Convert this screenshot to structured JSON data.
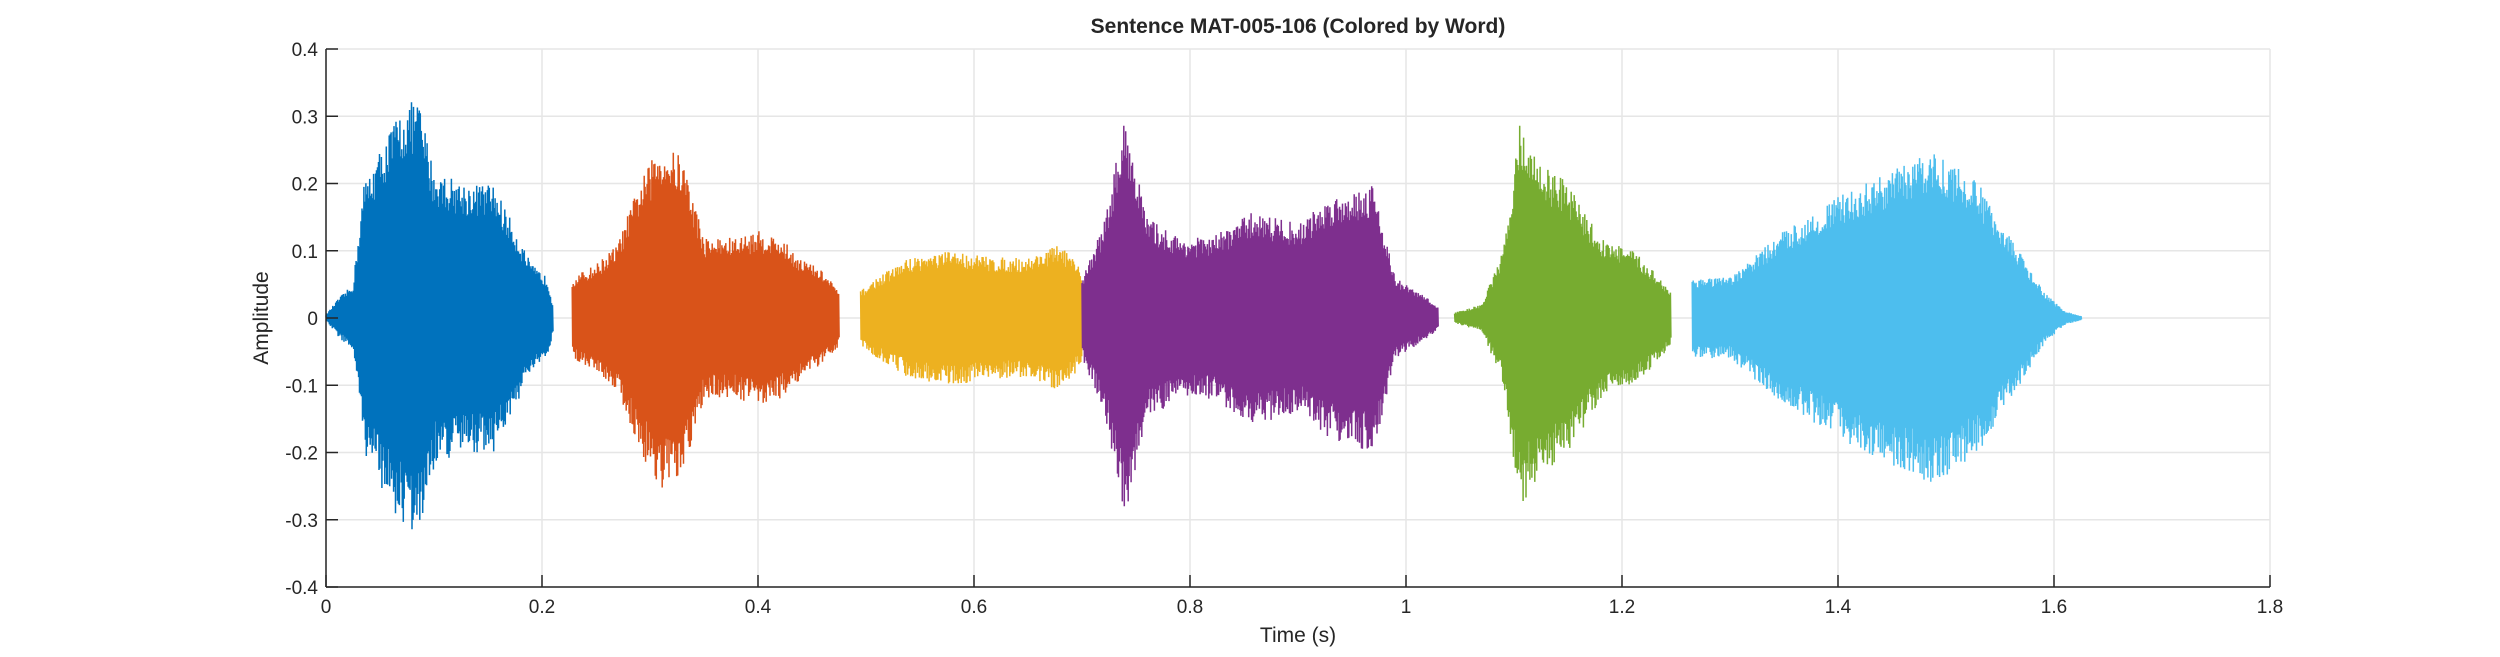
{
  "chart_data": {
    "type": "line",
    "title": "Sentence MAT-005-106 (Colored by Word)",
    "xlabel": "Time (s)",
    "ylabel": "Amplitude",
    "xlim": [
      0,
      1.8
    ],
    "ylim": [
      -0.4,
      0.4
    ],
    "xticks": [
      "0",
      "0.2",
      "0.4",
      "0.6",
      "0.8",
      "1",
      "1.2",
      "1.4",
      "1.6",
      "1.8"
    ],
    "yticks": [
      "0.4",
      "0.3",
      "0.2",
      "0.1",
      "0",
      "-0.1",
      "-0.2",
      "-0.3",
      "-0.4"
    ],
    "grid": true,
    "segments": [
      {
        "color": "#0072BD",
        "start": 0.0,
        "end": 0.21,
        "envelope": [
          [
            0.0,
            0.005
          ],
          [
            0.012,
            0.03
          ],
          [
            0.025,
            0.05
          ],
          [
            0.035,
            0.2
          ],
          [
            0.05,
            0.25
          ],
          [
            0.065,
            0.3
          ],
          [
            0.085,
            0.33
          ],
          [
            0.1,
            0.22
          ],
          [
            0.13,
            0.2
          ],
          [
            0.155,
            0.2
          ],
          [
            0.17,
            0.15
          ],
          [
            0.19,
            0.08
          ],
          [
            0.205,
            0.06
          ],
          [
            0.21,
            0.02
          ]
        ]
      },
      {
        "color": "#D95319",
        "start": 0.228,
        "end": 0.475,
        "envelope": [
          [
            0.228,
            0.06
          ],
          [
            0.25,
            0.08
          ],
          [
            0.27,
            0.11
          ],
          [
            0.29,
            0.2
          ],
          [
            0.31,
            0.26
          ],
          [
            0.33,
            0.24
          ],
          [
            0.35,
            0.12
          ],
          [
            0.38,
            0.12
          ],
          [
            0.4,
            0.13
          ],
          [
            0.42,
            0.12
          ],
          [
            0.44,
            0.09
          ],
          [
            0.46,
            0.07
          ],
          [
            0.475,
            0.04
          ]
        ]
      },
      {
        "color": "#EDB120",
        "start": 0.495,
        "end": 0.7,
        "envelope": [
          [
            0.495,
            0.04
          ],
          [
            0.51,
            0.06
          ],
          [
            0.54,
            0.09
          ],
          [
            0.58,
            0.1
          ],
          [
            0.62,
            0.09
          ],
          [
            0.65,
            0.09
          ],
          [
            0.68,
            0.11
          ],
          [
            0.7,
            0.07
          ]
        ]
      },
      {
        "color": "#7E2F8E",
        "start": 0.7,
        "end": 1.03,
        "envelope": [
          [
            0.7,
            0.06
          ],
          [
            0.72,
            0.14
          ],
          [
            0.74,
            0.3
          ],
          [
            0.76,
            0.15
          ],
          [
            0.79,
            0.12
          ],
          [
            0.82,
            0.12
          ],
          [
            0.86,
            0.16
          ],
          [
            0.9,
            0.14
          ],
          [
            0.93,
            0.18
          ],
          [
            0.97,
            0.2
          ],
          [
            0.99,
            0.06
          ],
          [
            1.02,
            0.03
          ],
          [
            1.03,
            0.015
          ]
        ]
      },
      {
        "color": "#77AC30",
        "start": 1.045,
        "end": 1.245,
        "envelope": [
          [
            1.045,
            0.008
          ],
          [
            1.07,
            0.02
          ],
          [
            1.09,
            0.1
          ],
          [
            1.105,
            0.29
          ],
          [
            1.12,
            0.24
          ],
          [
            1.15,
            0.2
          ],
          [
            1.18,
            0.12
          ],
          [
            1.21,
            0.1
          ],
          [
            1.23,
            0.07
          ],
          [
            1.245,
            0.04
          ]
        ]
      },
      {
        "color": "#4DBEEE",
        "start": 1.265,
        "end": 1.625,
        "envelope": [
          [
            1.265,
            0.06
          ],
          [
            1.3,
            0.06
          ],
          [
            1.35,
            0.13
          ],
          [
            1.4,
            0.18
          ],
          [
            1.45,
            0.22
          ],
          [
            1.49,
            0.25
          ],
          [
            1.53,
            0.2
          ],
          [
            1.56,
            0.12
          ],
          [
            1.59,
            0.04
          ],
          [
            1.61,
            0.01
          ],
          [
            1.625,
            0.003
          ]
        ]
      }
    ]
  }
}
